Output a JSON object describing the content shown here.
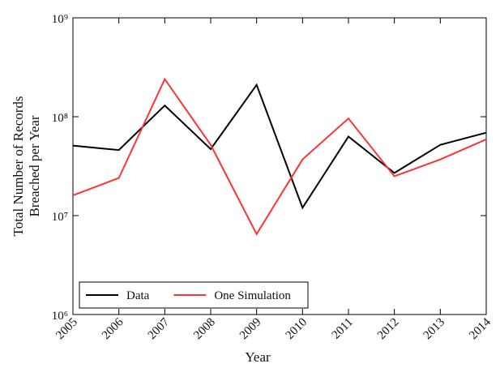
{
  "chart_data": {
    "type": "line",
    "ylabel": [
      "Total Number of Records",
      "Breached per Year"
    ],
    "xlabel": "Year",
    "categories": [
      "2005",
      "2006",
      "2007",
      "2008",
      "2009",
      "2010",
      "2011",
      "2012",
      "2013",
      "2014"
    ],
    "series": [
      {
        "name": "Data",
        "color": "#000000",
        "values": [
          51000000,
          46000000,
          130000000,
          47000000,
          210000000,
          12000000,
          63000000,
          27000000,
          52000000,
          69000000
        ]
      },
      {
        "name": "One Simulation",
        "color": "#ff3333",
        "values": [
          16000000,
          24000000,
          240000000,
          52000000,
          6500000,
          37000000,
          96000000,
          25000000,
          37000000,
          59000000
        ]
      }
    ],
    "ylim": [
      1000000,
      1000000000
    ],
    "yticks": [
      {
        "value": 1000000,
        "label": "10⁶"
      },
      {
        "value": 10000000,
        "label": "10⁷"
      },
      {
        "value": 100000000,
        "label": "10⁸"
      },
      {
        "value": 1000000000,
        "label": "10⁹"
      }
    ],
    "log_y": true,
    "grid": false,
    "legend": "lower left"
  }
}
